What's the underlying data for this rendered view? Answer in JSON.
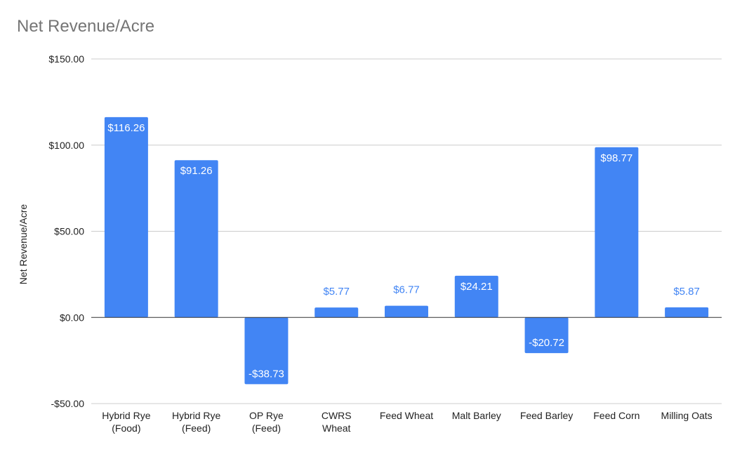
{
  "chart_data": {
    "type": "bar",
    "title": "Net Revenue/Acre",
    "xlabel": "",
    "ylabel": "Net Revenue/Acre",
    "categories": [
      [
        "Hybrid Rye",
        "(Food)"
      ],
      [
        "Hybrid Rye",
        "(Feed)"
      ],
      [
        "OP Rye",
        "(Feed)"
      ],
      [
        "CWRS",
        "Wheat"
      ],
      [
        "Feed Wheat"
      ],
      [
        "Malt Barley"
      ],
      [
        "Feed Barley"
      ],
      [
        "Feed Corn"
      ],
      [
        "Milling Oats"
      ]
    ],
    "values": [
      116.26,
      91.26,
      -38.73,
      5.77,
      6.77,
      24.21,
      -20.72,
      98.77,
      5.87
    ],
    "data_labels": [
      "$116.26",
      "$91.26",
      "-$38.73",
      "$5.77",
      "$6.77",
      "$24.21",
      "-$20.72",
      "$98.77",
      "$5.87"
    ],
    "ylim": [
      -50,
      150
    ],
    "yticks": [
      150,
      100,
      50,
      0,
      -50
    ],
    "ytick_labels": [
      "$150.00",
      "$100.00",
      "$50.00",
      "$0.00",
      "-$50.00"
    ],
    "grid": true,
    "legend": "none",
    "colors": {
      "bar": "#4285f4",
      "label_inside": "#ffffff",
      "label_outside": "#4285f4",
      "grid": "#cccccc",
      "zero_line": "#333333"
    }
  }
}
